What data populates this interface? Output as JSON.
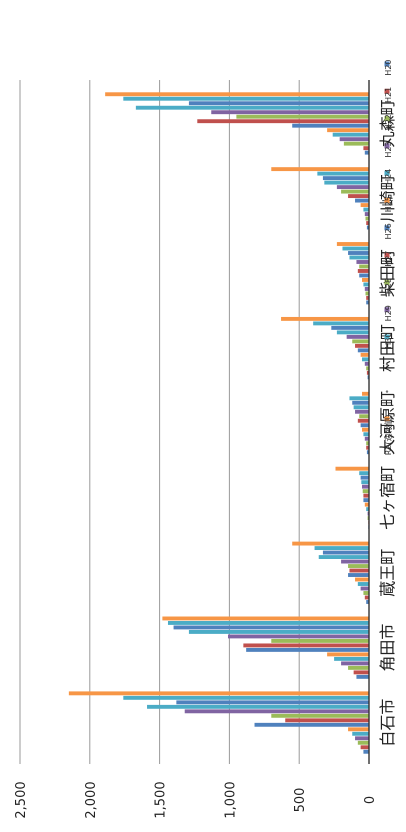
{
  "chart_data": {
    "type": "bar",
    "orientation": "rotated",
    "categories": [
      "白石市",
      "角田市",
      "蔵王町",
      "七ヶ宿町",
      "大河原町",
      "村田町",
      "柴田町",
      "川崎町",
      "丸森町"
    ],
    "series": [
      {
        "name": "H20",
        "color": "#4f81bd",
        "values": [
          40,
          90,
          20,
          5,
          15,
          10,
          20,
          15,
          30
        ]
      },
      {
        "name": "H21",
        "color": "#c0504d",
        "values": [
          60,
          110,
          30,
          5,
          20,
          15,
          20,
          20,
          40
        ]
      },
      {
        "name": "H22",
        "color": "#9bbb59",
        "values": [
          80,
          150,
          40,
          10,
          20,
          20,
          25,
          25,
          180
        ]
      },
      {
        "name": "H23",
        "color": "#8064a2",
        "values": [
          100,
          200,
          60,
          10,
          30,
          30,
          30,
          30,
          210
        ]
      },
      {
        "name": "H24",
        "color": "#4bacc6",
        "values": [
          120,
          250,
          80,
          20,
          40,
          50,
          40,
          40,
          260
        ]
      },
      {
        "name": "H25",
        "color": "#f79646",
        "values": [
          150,
          300,
          100,
          30,
          50,
          60,
          50,
          60,
          300
        ]
      },
      {
        "name": "H26",
        "color": "#4f81bd",
        "values": [
          820,
          880,
          150,
          40,
          60,
          80,
          70,
          100,
          550
        ]
      },
      {
        "name": "H27",
        "color": "#c0504d",
        "values": [
          600,
          900,
          140,
          40,
          80,
          100,
          80,
          150,
          1230
        ]
      },
      {
        "name": "H28",
        "color": "#9bbb59",
        "values": [
          700,
          700,
          150,
          45,
          70,
          120,
          70,
          200,
          950
        ]
      },
      {
        "name": "H29",
        "color": "#8064a2",
        "values": [
          1320,
          1010,
          200,
          50,
          100,
          160,
          90,
          230,
          1130
        ]
      },
      {
        "name": "H30",
        "color": "#4bacc6",
        "values": [
          1590,
          1290,
          360,
          55,
          110,
          230,
          140,
          320,
          1670
        ]
      },
      {
        "name": "",
        "color": "#4f81bd",
        "values": [
          1380,
          1400,
          330,
          60,
          120,
          270,
          150,
          330,
          1290
        ]
      },
      {
        "name": "",
        "color": "#4bacc6",
        "values": [
          1760,
          1440,
          390,
          70,
          140,
          400,
          190,
          370,
          1760
        ]
      },
      {
        "name": "R2(速報値)",
        "color": "#f79646",
        "values": [
          2150,
          1480,
          550,
          240,
          50,
          630,
          230,
          700,
          1890
        ]
      }
    ],
    "ylim": [
      0,
      2500
    ],
    "yticks": [
      "0",
      "500",
      "1,000",
      "1,500",
      "2,000",
      "2,500"
    ],
    "grid": true,
    "legend": "right"
  }
}
